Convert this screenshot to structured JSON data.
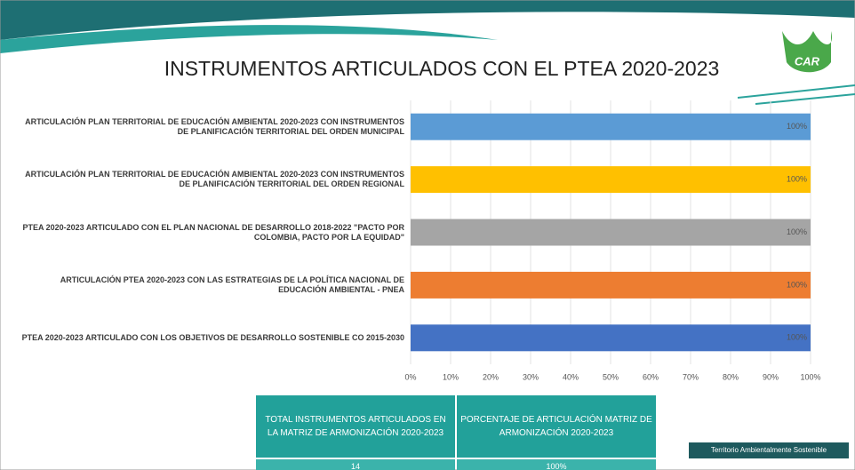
{
  "chart_data": {
    "type": "hbar",
    "title": "INSTRUMENTOS ARTICULADOS CON EL PTEA 2020-2023",
    "categories": [
      "ARTICULACIÓN PLAN TERRITORIAL DE EDUCACIÓN AMBIENTAL 2020-2023 CON INSTRUMENTOS DE PLANIFICACIÓN TERRITORIAL DEL ORDEN MUNICIPAL",
      "ARTICULACIÓN PLAN TERRITORIAL DE EDUCACIÓN AMBIENTAL 2020-2023 CON INSTRUMENTOS DE PLANIFICACIÓN TERRITORIAL DEL ORDEN REGIONAL",
      "PTEA 2020-2023 ARTICULADO CON EL PLAN NACIONAL DE DESARROLLO 2018-2022 \"PACTO POR COLOMBIA, PACTO POR LA EQUIDAD\"",
      "ARTICULACIÓN PTEA 2020-2023 CON LAS ESTRATEGIAS DE LA POLÍTICA NACIONAL DE EDUCACIÓN AMBIENTAL - PNEA",
      "PTEA 2020-2023 ARTICULADO CON LOS OBJETIVOS DE DESARROLLO SOSTENIBLE CO 2015-2030"
    ],
    "values": [
      100,
      100,
      100,
      100,
      100
    ],
    "value_labels": [
      "100%",
      "100%",
      "100%",
      "100%",
      "100%"
    ],
    "colors": [
      "#5b9bd5",
      "#ffc000",
      "#a5a5a5",
      "#ed7d31",
      "#4472c4"
    ],
    "xlim": [
      0,
      100
    ],
    "xticks": [
      {
        "value": 0,
        "label": "0%"
      },
      {
        "value": 10,
        "label": "10%"
      },
      {
        "value": 20,
        "label": "20%"
      },
      {
        "value": 30,
        "label": "30%"
      },
      {
        "value": 40,
        "label": "40%"
      },
      {
        "value": 50,
        "label": "50%"
      },
      {
        "value": 60,
        "label": "60%"
      },
      {
        "value": 70,
        "label": "70%"
      },
      {
        "value": 80,
        "label": "80%"
      },
      {
        "value": 90,
        "label": "90%"
      },
      {
        "value": 100,
        "label": "100%"
      }
    ],
    "grid": true
  },
  "table": {
    "headers": [
      "TOTAL INSTRUMENTOS ARTICULADOS EN LA MATRIZ DE ARMONIZACIÓN 2020-2023",
      "PORCENTAJE DE ARTICULACIÓN MATRIZ DE ARMONIZACIÓN 2020-2023"
    ],
    "rows": [
      [
        "14",
        "100%"
      ]
    ]
  },
  "logo_text": "CAR",
  "footer": "Territorio Ambientalmente Sostenible"
}
